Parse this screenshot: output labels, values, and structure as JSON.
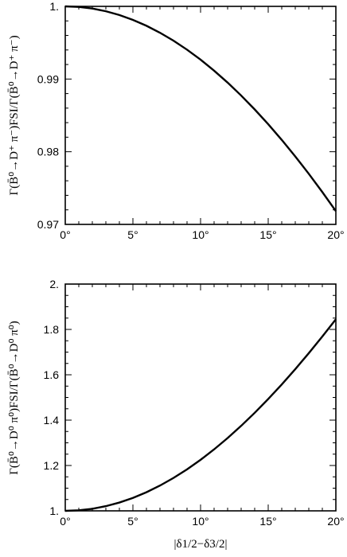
{
  "chart_data": [
    {
      "type": "line",
      "title": "",
      "xlabel": "",
      "ylabel": "Γ(B̄⁰→D⁺ π⁻)FSI/Γ(B̄⁰→D⁺ π⁻)",
      "xlim": [
        0,
        20
      ],
      "ylim": [
        0.97,
        1.0
      ],
      "x_ticks": [
        "0°",
        "5°",
        "10°",
        "15°",
        "20°"
      ],
      "y_ticks": [
        "0.97",
        "0.98",
        "0.99",
        "1."
      ],
      "series": [
        {
          "x": [
            0,
            1,
            2,
            3,
            4,
            5,
            6,
            7,
            8,
            9,
            10,
            11,
            12,
            13,
            14,
            15,
            16,
            17,
            18,
            19,
            20
          ],
          "values": [
            1.0,
            0.99993,
            0.9997,
            0.99933,
            0.99881,
            0.99814,
            0.99733,
            0.99637,
            0.99528,
            0.99404,
            0.99267,
            0.99115,
            0.98951,
            0.98773,
            0.98582,
            0.98379,
            0.98163,
            0.97935,
            0.97696,
            0.97445,
            0.97183
          ]
        }
      ]
    },
    {
      "type": "line",
      "title": "",
      "xlabel": "|δ1/2−δ3/2|",
      "ylabel": "Γ(B̄⁰→D⁰ π⁰)FSI/Γ(B̄⁰→D⁰ π⁰)",
      "xlim": [
        0,
        20
      ],
      "ylim": [
        1.0,
        2.0
      ],
      "x_ticks": [
        "0°",
        "5°",
        "10°",
        "15°",
        "20°"
      ],
      "y_ticks": [
        "1.",
        "1.2",
        "1.4",
        "1.6",
        "1.8",
        "2."
      ],
      "series": [
        {
          "x": [
            0,
            1,
            2,
            3,
            4,
            5,
            6,
            7,
            8,
            9,
            10,
            11,
            12,
            13,
            14,
            15,
            16,
            17,
            18,
            19,
            20
          ],
          "values": [
            1.0,
            1.0023,
            1.0092,
            1.0207,
            1.0367,
            1.0572,
            1.0821,
            1.1114,
            1.1451,
            1.183,
            1.225,
            1.2711,
            1.321,
            1.3748,
            1.4322,
            1.4931,
            1.5574,
            1.6249,
            1.6954,
            1.7687,
            1.8446
          ]
        }
      ]
    }
  ]
}
